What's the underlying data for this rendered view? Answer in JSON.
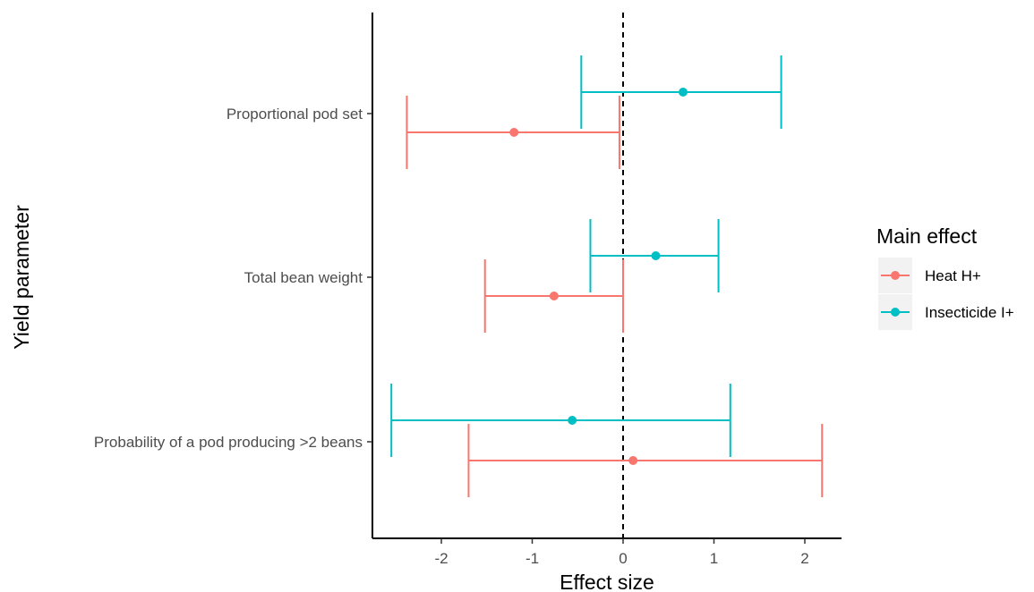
{
  "chart_data": {
    "type": "forest",
    "xlabel": "Effect size",
    "ylabel": "Yield parameter",
    "xlim": [
      -2.8,
      2.4
    ],
    "x_ticks": [
      -2,
      -1,
      0,
      1,
      2
    ],
    "x_tick_labels": [
      "-2",
      "-1",
      "0",
      "1",
      "2"
    ],
    "reference_line": {
      "x": 0,
      "style": "dashed"
    },
    "categories": [
      "Proportional pod set",
      "Total bean weight",
      "Probability of a pod producing >2 beans"
    ],
    "legend": {
      "title": "Main effect",
      "position": "right"
    },
    "series": [
      {
        "name": "Heat H+",
        "color": "#F8766D",
        "points": [
          {
            "category": "Proportional pod set",
            "estimate": -1.2,
            "lower": -2.38,
            "upper": -0.04
          },
          {
            "category": "Total bean weight",
            "estimate": -0.76,
            "lower": -1.52,
            "upper": 0.0
          },
          {
            "category": "Probability of a pod producing >2 beans",
            "estimate": 0.11,
            "lower": -1.7,
            "upper": 2.19
          }
        ]
      },
      {
        "name": "Insecticide I+",
        "color": "#00BFC4",
        "points": [
          {
            "category": "Proportional pod set",
            "estimate": 0.66,
            "lower": -0.46,
            "upper": 1.74
          },
          {
            "category": "Total bean weight",
            "estimate": 0.36,
            "lower": -0.36,
            "upper": 1.05
          },
          {
            "category": "Probability of a pod producing >2 beans",
            "estimate": -0.56,
            "lower": -2.55,
            "upper": 1.18
          }
        ]
      }
    ]
  }
}
